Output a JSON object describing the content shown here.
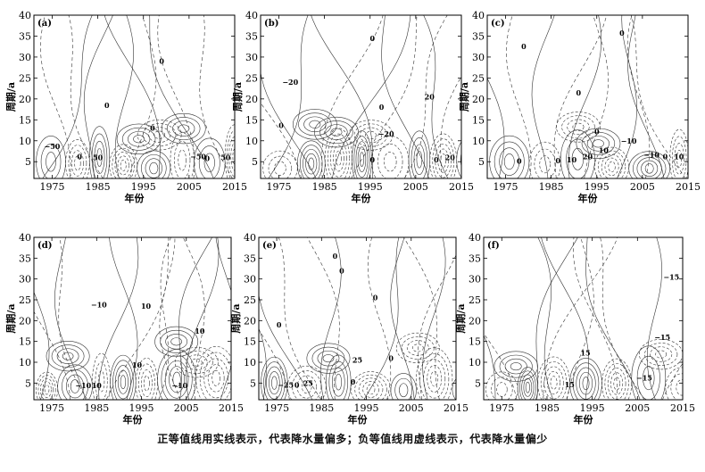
{
  "figure": {
    "caption": "正等值线用实线表示，代表降水量偏多；负等值线用虚线表示，代表降水量偏少"
  },
  "chart_data": [
    {
      "type": "contour",
      "panel_label": "(a)",
      "xlabel": "年份",
      "ylabel": "周期/a",
      "xlim": [
        1971,
        2015
      ],
      "ylim": [
        1,
        40
      ],
      "xticks": [
        1975,
        1985,
        1995,
        2005,
        2015
      ],
      "yticks": [
        5,
        10,
        15,
        20,
        25,
        30,
        35,
        40
      ],
      "contour_labels": [
        {
          "text": "0",
          "x": 1999,
          "y": 29
        },
        {
          "text": "0",
          "x": 1987,
          "y": 18.5
        },
        {
          "text": "0",
          "x": 1997,
          "y": 13
        },
        {
          "text": "−50",
          "x": 1975,
          "y": 8.7
        },
        {
          "text": "0",
          "x": 1981,
          "y": 6.2
        },
        {
          "text": "50",
          "x": 1985,
          "y": 6
        },
        {
          "text": "−50",
          "x": 2007,
          "y": 6.2
        },
        {
          "text": "0",
          "x": 2009,
          "y": 5.8
        },
        {
          "text": "50",
          "x": 2013,
          "y": 6
        }
      ]
    },
    {
      "type": "contour",
      "panel_label": "(b)",
      "xlabel": "年份",
      "ylabel": "周期/a",
      "xlim": [
        1971,
        2015
      ],
      "ylim": [
        1,
        40
      ],
      "xticks": [
        1975,
        1985,
        1995,
        2005,
        2015
      ],
      "yticks": [
        5,
        10,
        15,
        20,
        25,
        30,
        35,
        40
      ],
      "contour_labels": [
        {
          "text": "0",
          "x": 1995.5,
          "y": 34.5
        },
        {
          "text": "−20",
          "x": 1977.5,
          "y": 24
        },
        {
          "text": "20",
          "x": 2008,
          "y": 20.5
        },
        {
          "text": "0",
          "x": 1997.5,
          "y": 18
        },
        {
          "text": "0",
          "x": 1975.5,
          "y": 13.7
        },
        {
          "text": "−20",
          "x": 1998.5,
          "y": 11.7
        },
        {
          "text": "0",
          "x": 1995.5,
          "y": 5.5
        },
        {
          "text": "0",
          "x": 2009.5,
          "y": 5.5
        },
        {
          "text": "20",
          "x": 2012.5,
          "y": 6
        }
      ]
    },
    {
      "type": "contour",
      "panel_label": "(c)",
      "xlabel": "年份",
      "ylabel": "周期/a",
      "xlim": [
        1971,
        2015
      ],
      "ylim": [
        1,
        40
      ],
      "xticks": [
        1975,
        1985,
        1995,
        2005,
        2015
      ],
      "yticks": [
        5,
        10,
        15,
        20,
        25,
        30,
        35,
        40
      ],
      "contour_labels": [
        {
          "text": "0",
          "x": 2000.5,
          "y": 35.7
        },
        {
          "text": "0",
          "x": 1979,
          "y": 32.5
        },
        {
          "text": "0",
          "x": 1991,
          "y": 21.5
        },
        {
          "text": "0",
          "x": 1995,
          "y": 12.2
        },
        {
          "text": "−10",
          "x": 2002,
          "y": 10
        },
        {
          "text": "10",
          "x": 1996.5,
          "y": 7.7
        },
        {
          "text": "20",
          "x": 1993,
          "y": 6.2
        },
        {
          "text": "10",
          "x": 1989.5,
          "y": 5.5
        },
        {
          "text": "0",
          "x": 1986.5,
          "y": 5.3
        },
        {
          "text": "0",
          "x": 1978,
          "y": 5.2
        },
        {
          "text": "−10",
          "x": 2007,
          "y": 6.7
        },
        {
          "text": "0",
          "x": 2010,
          "y": 6.2
        },
        {
          "text": "10",
          "x": 2013,
          "y": 6.2
        }
      ]
    },
    {
      "type": "contour",
      "panel_label": "(d)",
      "xlabel": "年份",
      "ylabel": "周期/a",
      "xlim": [
        1971,
        2015
      ],
      "ylim": [
        1,
        40
      ],
      "xticks": [
        1975,
        1985,
        1995,
        2005,
        2015
      ],
      "yticks": [
        5,
        10,
        15,
        20,
        25,
        30,
        35,
        40
      ],
      "contour_labels": [
        {
          "text": "−10",
          "x": 1985.5,
          "y": 23.8
        },
        {
          "text": "10",
          "x": 1996,
          "y": 23.5
        },
        {
          "text": "10",
          "x": 2008,
          "y": 17.5
        },
        {
          "text": "10",
          "x": 1994,
          "y": 9.4
        },
        {
          "text": "−10",
          "x": 1982,
          "y": 4.4
        },
        {
          "text": "10",
          "x": 1985,
          "y": 4.4
        },
        {
          "text": "−10",
          "x": 2003.5,
          "y": 4.4
        }
      ]
    },
    {
      "type": "contour",
      "panel_label": "(e)",
      "xlabel": "年份",
      "ylabel": "周期/a",
      "xlim": [
        1971,
        2015
      ],
      "ylim": [
        1,
        40
      ],
      "xticks": [
        1975,
        1985,
        1995,
        2005,
        2015
      ],
      "yticks": [
        5,
        10,
        15,
        20,
        25,
        30,
        35,
        40
      ],
      "contour_labels": [
        {
          "text": "0",
          "x": 1988,
          "y": 35.5
        },
        {
          "text": "0",
          "x": 1989.5,
          "y": 32
        },
        {
          "text": "0",
          "x": 1997,
          "y": 25.5
        },
        {
          "text": "0",
          "x": 1975.5,
          "y": 19
        },
        {
          "text": "25",
          "x": 1993,
          "y": 10.5
        },
        {
          "text": "0",
          "x": 2000.5,
          "y": 11
        },
        {
          "text": "−25",
          "x": 1977,
          "y": 4.5
        },
        {
          "text": "0",
          "x": 1979.5,
          "y": 4.5
        },
        {
          "text": "25",
          "x": 1982,
          "y": 5
        },
        {
          "text": "0",
          "x": 1992,
          "y": 5.3
        }
      ]
    },
    {
      "type": "contour",
      "panel_label": "(f)",
      "xlabel": "年份",
      "ylabel": "周期/a",
      "xlim": [
        1971,
        2015
      ],
      "ylim": [
        1,
        40
      ],
      "xticks": [
        1975,
        1985,
        1995,
        2005,
        2015
      ],
      "yticks": [
        5,
        10,
        15,
        20,
        25,
        30,
        35,
        40
      ],
      "contour_labels": [
        {
          "text": "−15",
          "x": 2012.5,
          "y": 30.5
        },
        {
          "text": "−15",
          "x": 2010.5,
          "y": 16
        },
        {
          "text": "15",
          "x": 1993.5,
          "y": 12.3
        },
        {
          "text": "15",
          "x": 1990,
          "y": 4.6
        },
        {
          "text": "−15",
          "x": 2006.5,
          "y": 6.2
        }
      ]
    }
  ]
}
